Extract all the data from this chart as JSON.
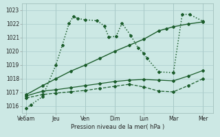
{
  "background_color": "#cce8e4",
  "grid_color": "#aacccc",
  "line_color": "#1a5c2a",
  "xlabel": "Pression niveau de la mer( hPa )",
  "ylim": [
    1015.5,
    1023.5
  ],
  "yticks": [
    1016,
    1017,
    1018,
    1019,
    1020,
    1021,
    1022,
    1023
  ],
  "xtick_labels": [
    "Ve6am",
    "Jeu",
    "Ven",
    "Dim",
    "Lun",
    "Mar",
    "Mer"
  ],
  "xtick_positions": [
    0,
    1,
    2,
    3,
    4,
    5,
    6
  ],
  "series": [
    {
      "x": [
        0,
        0.15,
        0.55,
        1.0,
        1.22,
        1.45,
        1.6,
        1.75,
        2.0,
        2.4,
        2.65,
        2.8,
        3.05,
        3.25,
        3.55,
        3.8,
        4.0,
        4.1,
        4.5,
        5.0,
        5.3,
        5.55,
        6.0
      ],
      "y": [
        1015.85,
        1016.1,
        1016.7,
        1019.0,
        1020.45,
        1022.05,
        1022.55,
        1022.4,
        1022.3,
        1022.25,
        1021.85,
        1021.05,
        1021.1,
        1022.05,
        1021.15,
        1020.25,
        1019.85,
        1019.5,
        1018.5,
        1018.45,
        1022.7,
        1022.7,
        1022.2
      ],
      "style": ":",
      "marker": "D",
      "markersize": 2.0,
      "linewidth": 1.1
    },
    {
      "x": [
        0,
        0.55,
        1.0,
        1.5,
        2.0,
        2.5,
        3.0,
        3.5,
        4.0,
        4.5,
        4.75,
        5.0,
        5.5,
        6.0
      ],
      "y": [
        1016.85,
        1017.5,
        1018.0,
        1018.55,
        1019.0,
        1019.5,
        1020.0,
        1020.45,
        1020.9,
        1021.5,
        1021.65,
        1021.8,
        1022.0,
        1022.15
      ],
      "style": "-",
      "marker": "D",
      "markersize": 2.0,
      "linewidth": 1.0
    },
    {
      "x": [
        0,
        0.55,
        1.0,
        1.5,
        2.0,
        2.5,
        3.0,
        3.5,
        4.0,
        4.5,
        5.0,
        5.5,
        6.0
      ],
      "y": [
        1016.75,
        1017.1,
        1017.2,
        1017.35,
        1017.5,
        1017.65,
        1017.8,
        1017.9,
        1017.95,
        1017.9,
        1017.85,
        1018.2,
        1018.6
      ],
      "style": "-",
      "marker": "D",
      "markersize": 2.0,
      "linewidth": 0.9
    },
    {
      "x": [
        0,
        0.55,
        1.0,
        1.5,
        2.0,
        2.5,
        3.0,
        3.5,
        4.0,
        4.5,
        5.0,
        5.5,
        6.0
      ],
      "y": [
        1016.6,
        1016.85,
        1016.95,
        1017.05,
        1017.15,
        1017.3,
        1017.45,
        1017.6,
        1017.4,
        1017.1,
        1017.05,
        1017.5,
        1018.0
      ],
      "style": "--",
      "marker": "D",
      "markersize": 2.0,
      "linewidth": 0.9
    }
  ]
}
